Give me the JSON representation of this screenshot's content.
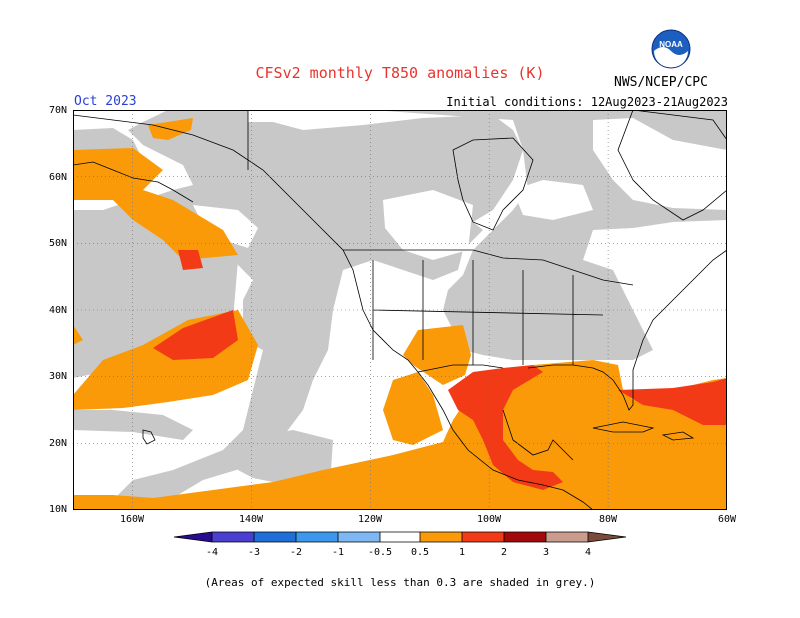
{
  "header": {
    "title": "CFSv2 monthly T850 anomalies (K)",
    "month": "Oct 2023",
    "initial_conditions": "Initial conditions: 12Aug2023-21Aug2023",
    "agency": "NWS/NCEP/CPC",
    "logo_text": "NOAA"
  },
  "map": {
    "lat_labels": [
      "70N",
      "60N",
      "50N",
      "40N",
      "30N",
      "20N",
      "10N"
    ],
    "lon_labels": [
      "160W",
      "140W",
      "120W",
      "100W",
      "80W",
      "60W"
    ],
    "lat_range": [
      10,
      70
    ],
    "lon_range": [
      -170,
      -60
    ]
  },
  "legend": {
    "labels": [
      "-4",
      "-3",
      "-2",
      "-1",
      "-0.5",
      "0.5",
      "1",
      "2",
      "3",
      "4"
    ],
    "colors": [
      "#2a0d8e",
      "#4a3fd0",
      "#1f6fd8",
      "#3c98ec",
      "#7db8f4",
      "#ffffff",
      "#fb9a08",
      "#f23a16",
      "#a3080a",
      "#c99c8d",
      "#7a4a3c"
    ],
    "skill_mask_color": "#c8c8c8"
  },
  "footnote": "(Areas of expected skill less than 0.3 are shaded in grey.)"
}
